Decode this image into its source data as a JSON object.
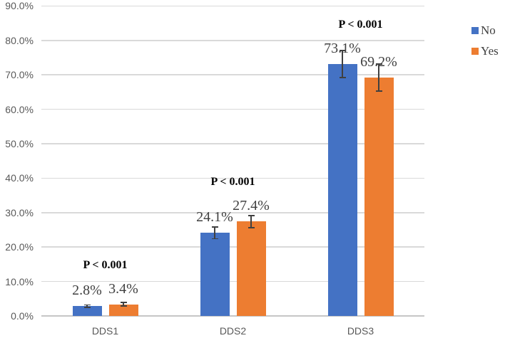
{
  "chart_data": {
    "type": "bar",
    "categories": [
      "DDS1",
      "DDS2",
      "DDS3"
    ],
    "series": [
      {
        "name": "No",
        "color": "#4472C4",
        "values": [
          2.8,
          24.1,
          73.1
        ],
        "labels": [
          "2.8%",
          "24.1%",
          "73.1%"
        ],
        "errors": [
          0.4,
          1.7,
          3.9
        ]
      },
      {
        "name": "Yes",
        "color": "#ED7D31",
        "values": [
          3.4,
          27.4,
          69.2
        ],
        "labels": [
          "3.4%",
          "27.4%",
          "69.2%"
        ],
        "errors": [
          0.5,
          1.7,
          3.9
        ]
      }
    ],
    "annotations": [
      {
        "category": "DDS1",
        "text": "P < 0.001"
      },
      {
        "category": "DDS2",
        "text": "P < 0.001"
      },
      {
        "category": "DDS3",
        "text": "P < 0.001"
      }
    ],
    "y_ticks": [
      "0.0%",
      "10.0%",
      "20.0%",
      "30.0%",
      "40.0%",
      "50.0%",
      "60.0%",
      "70.0%",
      "80.0%",
      "90.0%"
    ],
    "y_tick_step": 10,
    "ylim": [
      0,
      90
    ],
    "title": "",
    "xlabel": "",
    "ylabel": "",
    "grid": true,
    "legend": {
      "position": "right",
      "entries": [
        "No",
        "Yes"
      ]
    },
    "colors": {
      "gridline": "#D9D9D9",
      "axis_line": "#C6C6C6",
      "tick_label": "#595959",
      "value_label": "#404040",
      "error_bar": "#404040",
      "annotation": "#000000",
      "background": "#FFFFFF"
    }
  }
}
